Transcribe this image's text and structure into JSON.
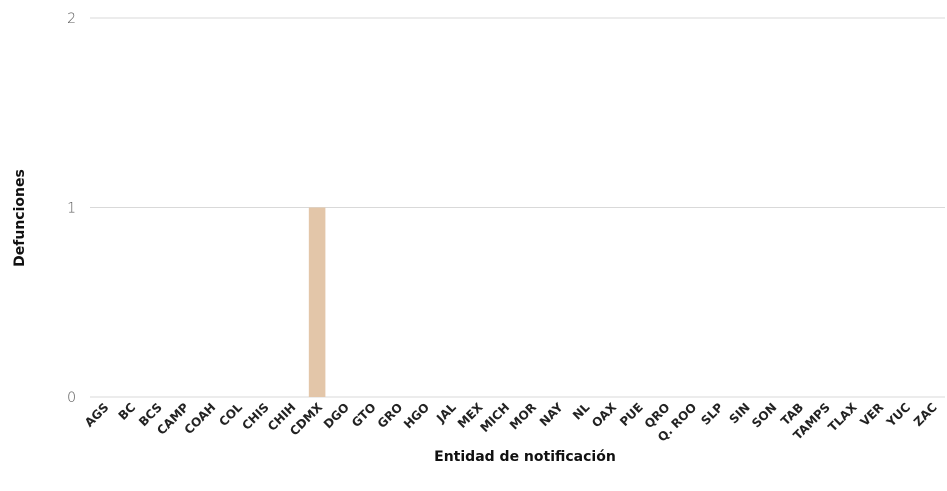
{
  "chart_data": {
    "type": "bar",
    "title": "",
    "xlabel": "Entidad de notificación",
    "ylabel": "Defunciones",
    "ylim": [
      0,
      2
    ],
    "yticks": [
      "0",
      "1",
      "2"
    ],
    "grid": true,
    "bar_color": "#e3c6a9",
    "categories": [
      "AGS",
      "BC",
      "BCS",
      "CAMP",
      "COAH",
      "COL",
      "CHIS",
      "CHIH",
      "CDMX",
      "DGO",
      "GTO",
      "GRO",
      "HGO",
      "JAL",
      "MEX",
      "MICH",
      "MOR",
      "NAY",
      "NL",
      "OAX",
      "PUE",
      "QRO",
      "Q. ROO",
      "SLP",
      "SIN",
      "SON",
      "TAB",
      "TAMPS",
      "TLAX",
      "VER",
      "YUC",
      "ZAC"
    ],
    "values": [
      0,
      0,
      0,
      0,
      0,
      0,
      0,
      0,
      1,
      0,
      0,
      0,
      0,
      0,
      0,
      0,
      0,
      0,
      0,
      0,
      0,
      0,
      0,
      0,
      0,
      0,
      0,
      0,
      0,
      0,
      0,
      0
    ]
  }
}
